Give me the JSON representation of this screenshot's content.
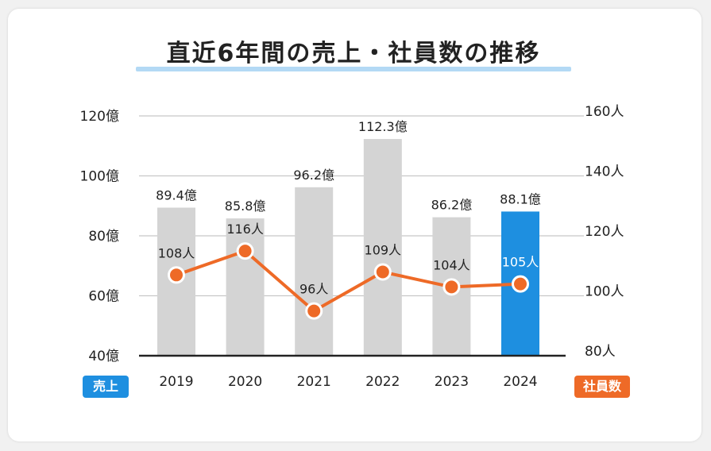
{
  "title": "直近6年間の売上・社員数の推移",
  "colors": {
    "bar": "#d4d4d4",
    "bar_highlight": "#1e8fe0",
    "line": "#ee6a27",
    "axis": "#222222",
    "grid": "#c8c8c8"
  },
  "legend": {
    "sales_label": "売上",
    "employees_label": "社員数"
  },
  "chart_data": {
    "type": "bar",
    "categories": [
      "2019",
      "2020",
      "2021",
      "2022",
      "2023",
      "2024"
    ],
    "series": [
      {
        "kind": "bar",
        "axis": "left",
        "values": [
          89.4,
          85.8,
          96.2,
          112.3,
          86.2,
          88.1
        ],
        "labels": [
          "89.4億",
          "85.8億",
          "96.2億",
          "112.3億",
          "86.2億",
          "88.1億"
        ],
        "highlight_index": 5
      },
      {
        "kind": "line",
        "axis": "right",
        "values": [
          108,
          116,
          96,
          109,
          104,
          105
        ],
        "labels": [
          "108人",
          "116人",
          "96人",
          "109人",
          "104人",
          "105人"
        ]
      }
    ],
    "y_left": {
      "range": [
        40,
        120
      ],
      "ticks": [
        40,
        60,
        80,
        100,
        120
      ],
      "tick_labels": [
        "40億",
        "60億",
        "80億",
        "100億",
        "120億"
      ]
    },
    "y_right": {
      "range": [
        80,
        160
      ],
      "ticks": [
        80,
        100,
        120,
        140,
        160
      ],
      "tick_labels": [
        "80人",
        "100人",
        "120人",
        "140人",
        "160人"
      ]
    },
    "grid": true
  }
}
